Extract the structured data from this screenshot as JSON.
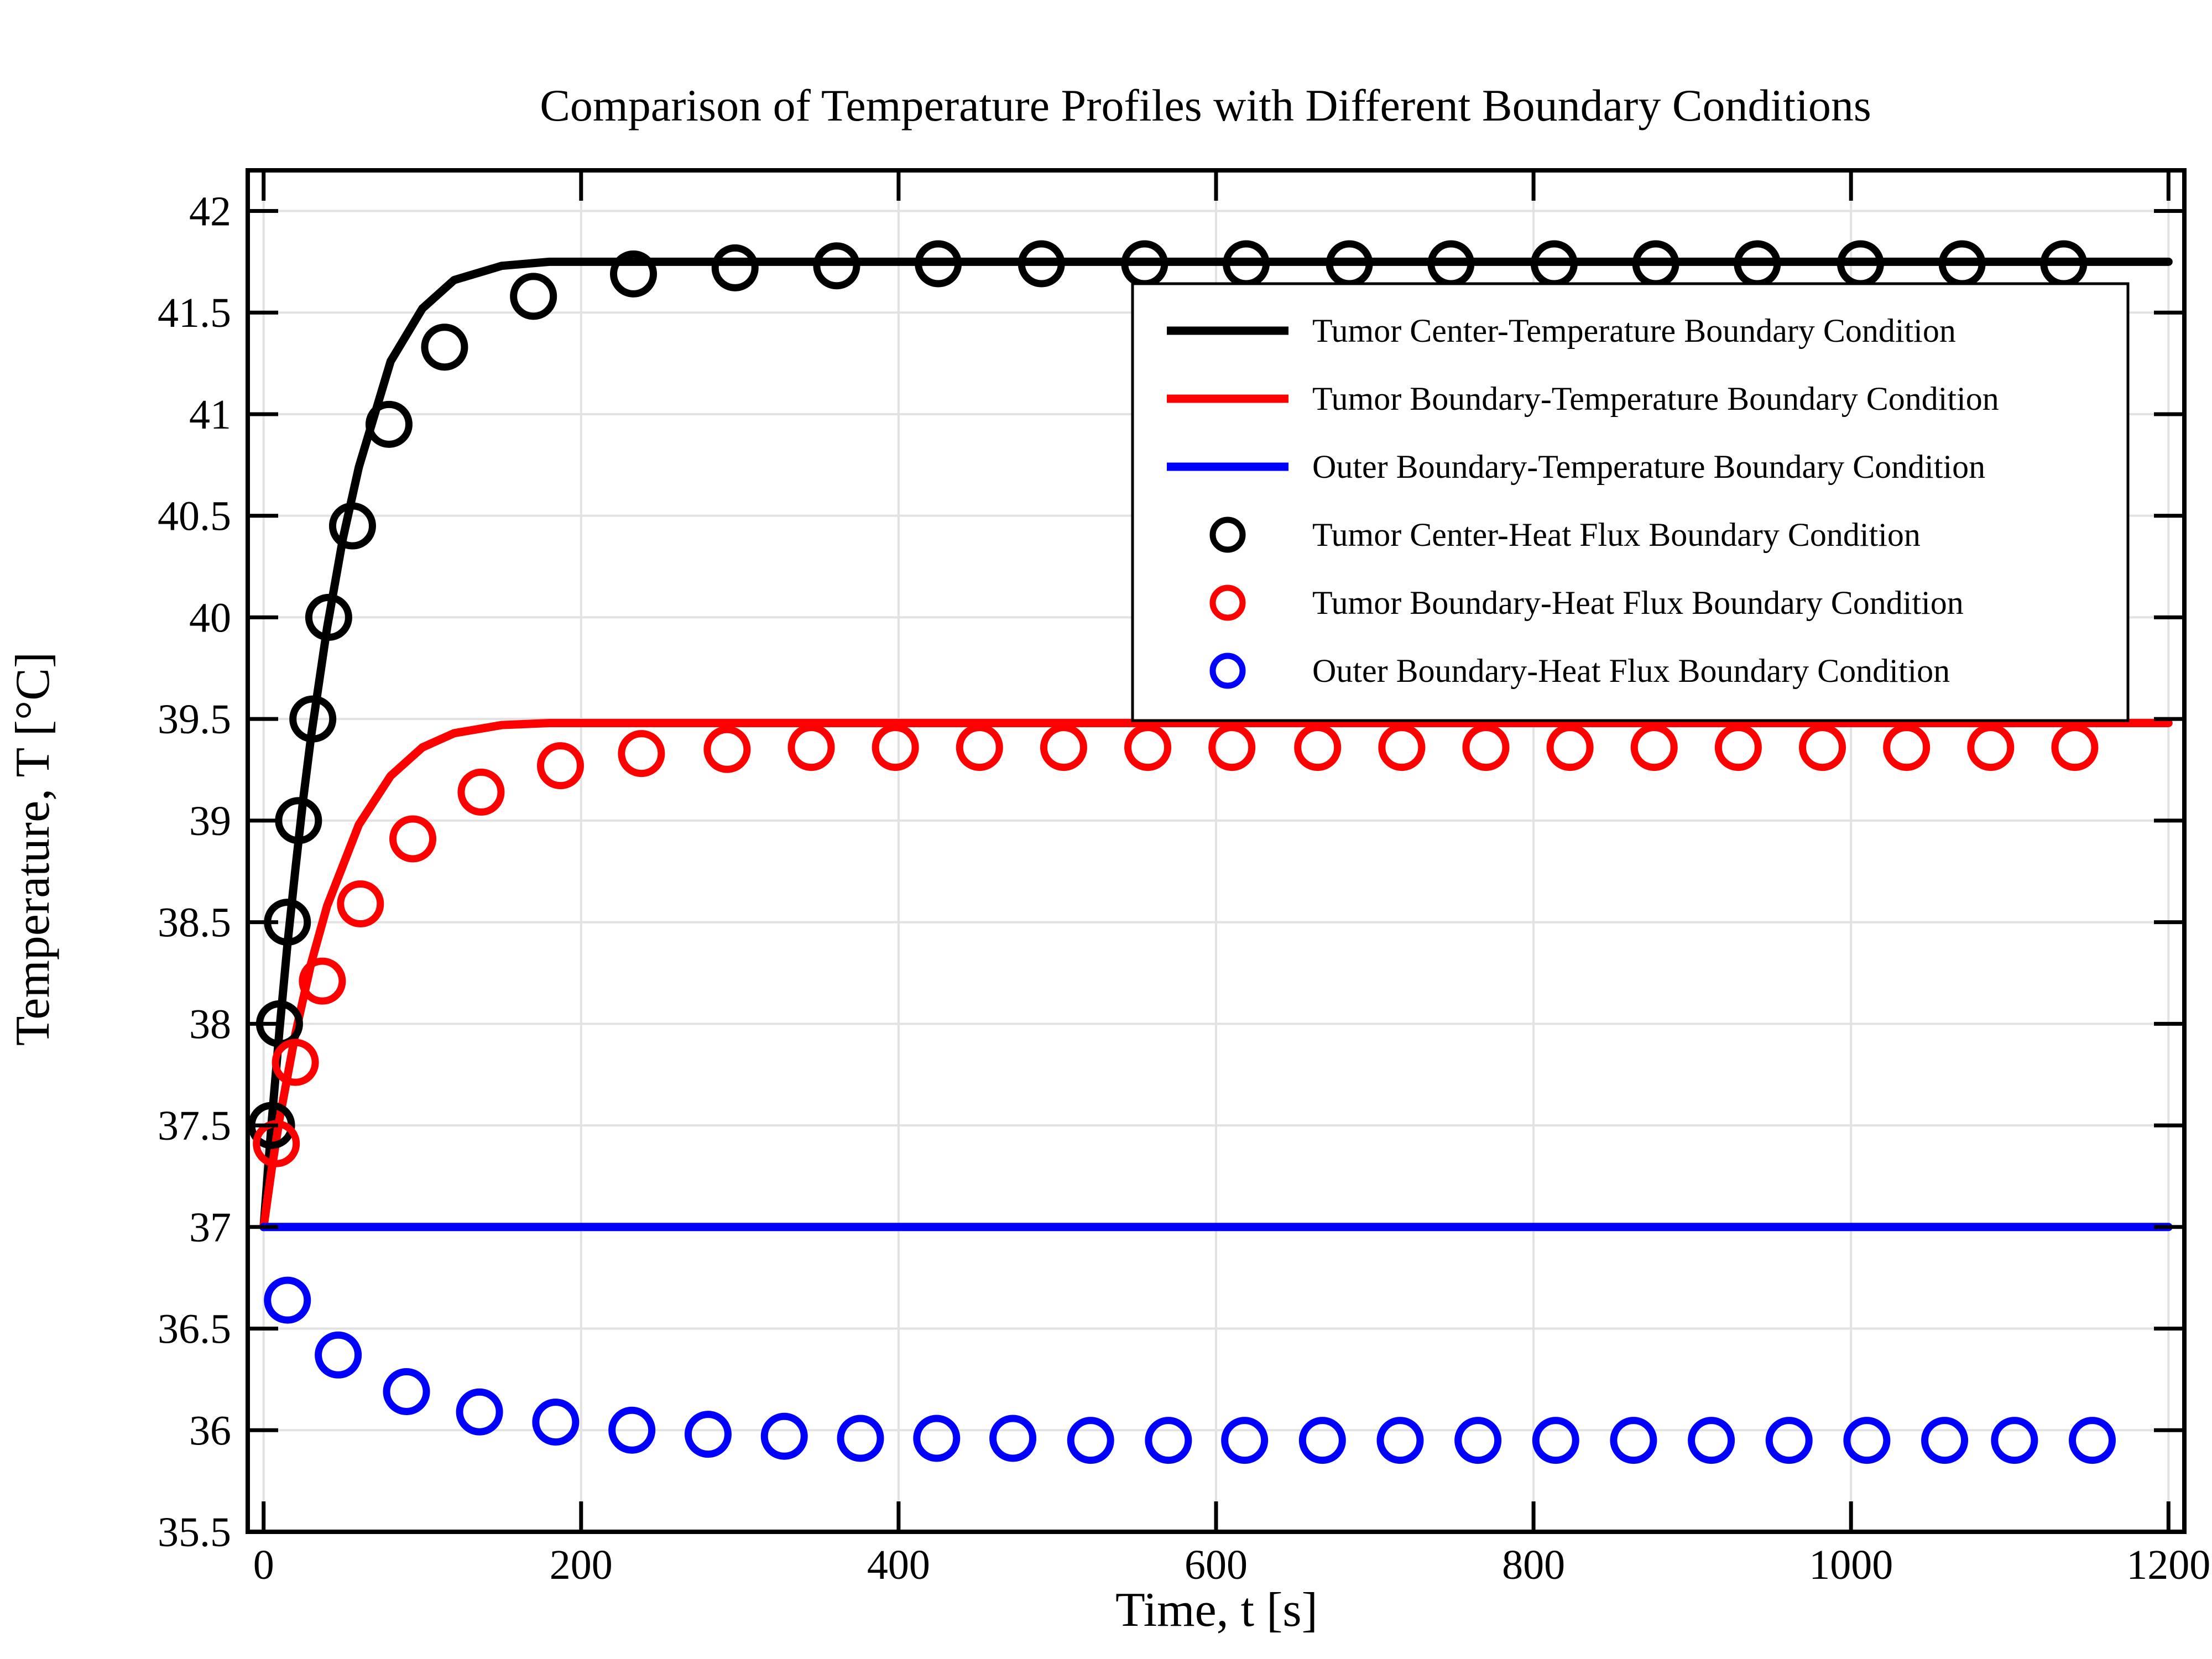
{
  "colors": {
    "tumor_center": "#000000",
    "tumor_boundary": "#ff0000",
    "outer_boundary": "#0000ff",
    "grid": "#e2e2e2",
    "background": "#ffffff"
  },
  "chart_data": {
    "type": "line",
    "title": "Comparison of Temperature Profiles with Different Boundary Conditions",
    "xlabel": "Time, t [s]",
    "ylabel": "Temperature, T [°C]",
    "xlim": [
      -10,
      1210
    ],
    "ylim": [
      35.5,
      42.2
    ],
    "xticks": [
      0,
      200,
      400,
      600,
      800,
      1000,
      1200
    ],
    "xtick_labels": [
      "0",
      "200",
      "400",
      "600",
      "800",
      "1000",
      "1200"
    ],
    "yticks": [
      35.5,
      36,
      36.5,
      37,
      37.5,
      38,
      38.5,
      39,
      39.5,
      40,
      40.5,
      41,
      41.5,
      42
    ],
    "ytick_labels": [
      "35.5",
      "36",
      "36.5",
      "37",
      "37.5",
      "38",
      "38.5",
      "39",
      "39.5",
      "40",
      "40.5",
      "41",
      "41.5",
      "42"
    ],
    "grid": true,
    "legend_position": "top-right",
    "series": [
      {
        "name": "Tumor Center-Temperature Boundary Condition",
        "kind": "line",
        "color": "#000000",
        "x": [
          0,
          5,
          10,
          15,
          20,
          25,
          30,
          40,
          50,
          60,
          80,
          100,
          120,
          150,
          180,
          220,
          260,
          300,
          400,
          500,
          600,
          800,
          1000,
          1200
        ],
        "y": [
          37.0,
          37.51,
          37.97,
          38.39,
          38.76,
          39.11,
          39.42,
          39.95,
          40.39,
          40.74,
          41.26,
          41.52,
          41.66,
          41.73,
          41.75,
          41.75,
          41.75,
          41.75,
          41.75,
          41.75,
          41.75,
          41.75,
          41.75,
          41.75
        ]
      },
      {
        "name": "Tumor Boundary-Temperature Boundary Condition",
        "kind": "line",
        "color": "#ff0000",
        "x": [
          0,
          5,
          10,
          20,
          30,
          40,
          60,
          80,
          100,
          120,
          150,
          180,
          220,
          260,
          300,
          400,
          500,
          600,
          800,
          1000,
          1200
        ],
        "y": [
          37.0,
          37.28,
          37.53,
          37.95,
          38.3,
          38.58,
          38.98,
          39.22,
          39.36,
          39.43,
          39.47,
          39.48,
          39.48,
          39.48,
          39.48,
          39.48,
          39.48,
          39.48,
          39.48,
          39.48,
          39.48
        ]
      },
      {
        "name": "Outer Boundary-Temperature Boundary Condition",
        "kind": "line",
        "color": "#0000ff",
        "x": [
          0,
          1200
        ],
        "y": [
          37.0,
          37.0
        ]
      },
      {
        "name": "Tumor Center-Heat Flux Boundary Condition",
        "kind": "scatter",
        "color": "#000000",
        "x": [
          5,
          10,
          15,
          22,
          31,
          41,
          56,
          79,
          114,
          170,
          233,
          297,
          361,
          425,
          490,
          555,
          619,
          684,
          748,
          813,
          877,
          941,
          1006,
          1070,
          1134
        ],
        "y": [
          37.5,
          38.0,
          38.5,
          39.0,
          39.5,
          40.0,
          40.45,
          40.95,
          41.33,
          41.58,
          41.69,
          41.72,
          41.73,
          41.74,
          41.74,
          41.74,
          41.74,
          41.74,
          41.74,
          41.74,
          41.74,
          41.74,
          41.74,
          41.74,
          41.74
        ]
      },
      {
        "name": "Tumor Boundary-Heat Flux Boundary Condition",
        "kind": "scatter",
        "color": "#ff0000",
        "x": [
          8,
          20,
          37,
          61,
          94,
          137,
          187,
          238,
          292,
          345,
          398,
          451,
          504,
          557,
          610,
          664,
          717,
          770,
          823,
          876,
          929,
          982,
          1035,
          1088,
          1141
        ],
        "y": [
          37.41,
          37.81,
          38.21,
          38.59,
          38.91,
          39.14,
          39.27,
          39.33,
          39.35,
          39.36,
          39.36,
          39.36,
          39.36,
          39.36,
          39.36,
          39.36,
          39.36,
          39.36,
          39.36,
          39.36,
          39.36,
          39.36,
          39.36,
          39.36,
          39.36
        ]
      },
      {
        "name": "Outer Boundary-Heat Flux Boundary Condition",
        "kind": "scatter",
        "color": "#0000ff",
        "x": [
          15,
          47,
          90,
          136,
          184,
          232,
          280,
          328,
          376,
          424,
          472,
          521,
          570,
          618,
          667,
          716,
          765,
          814,
          863,
          912,
          961,
          1010,
          1059,
          1103,
          1152
        ],
        "y": [
          36.64,
          36.37,
          36.19,
          36.09,
          36.04,
          36.0,
          35.98,
          35.97,
          35.96,
          35.96,
          35.96,
          35.95,
          35.95,
          35.95,
          35.95,
          35.95,
          35.95,
          35.95,
          35.95,
          35.95,
          35.95,
          35.95,
          35.95,
          35.95,
          35.95
        ]
      }
    ]
  }
}
